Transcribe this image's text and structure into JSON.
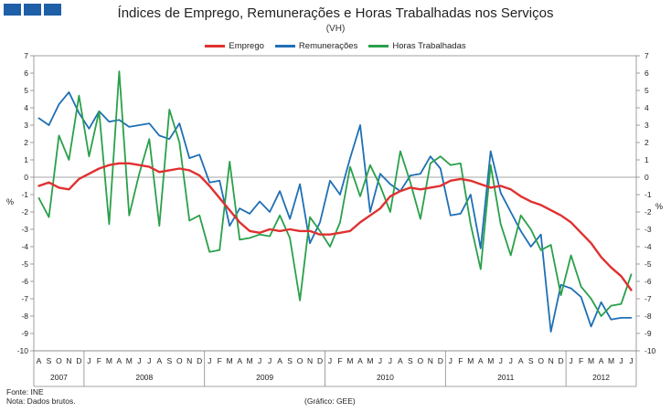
{
  "header": {
    "title": "Índices de Emprego, Remunerações e Horas Trabalhadas nos Serviços",
    "subtitle": "(VH)"
  },
  "axis": {
    "unit_left": "%",
    "unit_right": "%"
  },
  "footer": {
    "source": "Fonte: INE",
    "note": "Nota: Dados brutos.",
    "credit": "(Gráfico: GEE)"
  },
  "colors": {
    "emprego": "#e03030",
    "remuneracoes": "#1f6fb5",
    "horas": "#2aa04a",
    "logo": "#1f5fa8"
  },
  "chart_data": {
    "type": "line",
    "title": "Índices de Emprego, Remunerações e Horas Trabalhadas nos Serviços",
    "subtitle": "(VH)",
    "ylabel": "%",
    "ylim": [
      -10,
      7
    ],
    "yticks": [
      7,
      6,
      5,
      4,
      3,
      2,
      1,
      0,
      -1,
      -2,
      -3,
      -4,
      -5,
      -6,
      -7,
      -8,
      -9,
      -10
    ],
    "grid": false,
    "legend_position": "top-center",
    "month_labels": [
      "A",
      "S",
      "O",
      "N",
      "D",
      "J",
      "F",
      "M",
      "A",
      "M",
      "J",
      "J",
      "A",
      "S",
      "O",
      "N",
      "D",
      "J",
      "F",
      "M",
      "A",
      "M",
      "J",
      "J",
      "A",
      "S",
      "O",
      "N",
      "D",
      "J",
      "F",
      "M",
      "A",
      "M",
      "J",
      "J",
      "A",
      "S",
      "O",
      "N",
      "D",
      "J",
      "F",
      "M",
      "A",
      "M",
      "J",
      "J",
      "A",
      "S",
      "O",
      "N",
      "D",
      "J",
      "F",
      "M",
      "A",
      "M",
      "J",
      "J"
    ],
    "years": [
      {
        "label": "2007",
        "start": 0,
        "end": 5
      },
      {
        "label": "2008",
        "start": 5,
        "end": 17
      },
      {
        "label": "2009",
        "start": 17,
        "end": 29
      },
      {
        "label": "2010",
        "start": 29,
        "end": 41
      },
      {
        "label": "2011",
        "start": 41,
        "end": 53
      },
      {
        "label": "2012",
        "start": 53,
        "end": 60
      }
    ],
    "series": [
      {
        "name": "Emprego",
        "values": [
          -0.5,
          -0.3,
          -0.6,
          -0.7,
          -0.1,
          0.2,
          0.5,
          0.7,
          0.8,
          0.8,
          0.7,
          0.6,
          0.3,
          0.4,
          0.5,
          0.4,
          0.1,
          -0.5,
          -1.2,
          -1.9,
          -2.6,
          -3.1,
          -3.2,
          -3.0,
          -3.1,
          -3.0,
          -3.1,
          -3.1,
          -3.3,
          -3.3,
          -3.2,
          -3.1,
          -2.6,
          -2.2,
          -1.8,
          -1.1,
          -0.8,
          -0.6,
          -0.7,
          -0.6,
          -0.5,
          -0.2,
          -0.1,
          -0.2,
          -0.4,
          -0.6,
          -0.5,
          -0.7,
          -1.1,
          -1.4,
          -1.6,
          -1.9,
          -2.2,
          -2.6,
          -3.2,
          -3.8,
          -4.6,
          -5.2,
          -5.7,
          -6.5
        ]
      },
      {
        "name": "Remunerações",
        "values": [
          3.4,
          3.0,
          4.2,
          4.9,
          3.7,
          2.8,
          3.8,
          3.2,
          3.3,
          2.9,
          3.0,
          3.1,
          2.4,
          2.2,
          3.1,
          1.1,
          1.3,
          -0.3,
          -0.2,
          -2.8,
          -1.8,
          -2.1,
          -1.4,
          -2.0,
          -0.8,
          -2.4,
          -0.4,
          -3.8,
          -2.6,
          -0.2,
          -1.0,
          1.1,
          3.0,
          -2.0,
          0.2,
          -0.4,
          -0.8,
          0.1,
          0.2,
          1.2,
          0.5,
          -2.2,
          -2.1,
          -1.0,
          -4.1,
          1.5,
          -0.9,
          -2.0,
          -3.1,
          -4.0,
          -3.3,
          -8.9,
          -6.2,
          -6.4,
          -6.9,
          -8.6,
          -7.2,
          -8.2,
          -8.1,
          -8.1
        ]
      },
      {
        "name": "Horas Trabalhadas",
        "values": [
          -1.2,
          -2.3,
          2.4,
          1.0,
          4.7,
          1.2,
          3.8,
          -2.7,
          6.1,
          -2.2,
          0.2,
          2.2,
          -2.8,
          3.9,
          2.0,
          -2.5,
          -2.2,
          -4.3,
          -4.2,
          0.9,
          -3.6,
          -3.5,
          -3.3,
          -3.4,
          -2.2,
          -3.5,
          -7.1,
          -2.3,
          -3.1,
          -4.0,
          -2.6,
          0.6,
          -1.1,
          0.7,
          -0.5,
          -2.0,
          1.5,
          -0.3,
          -2.4,
          0.8,
          1.2,
          0.7,
          0.8,
          -2.7,
          -5.3,
          0.7,
          -2.7,
          -4.5,
          -2.2,
          -3.0,
          -4.2,
          -3.9,
          -6.8,
          -4.5,
          -6.3,
          -7.0,
          -8.0,
          -7.4,
          -7.3,
          -5.6
        ]
      }
    ]
  }
}
